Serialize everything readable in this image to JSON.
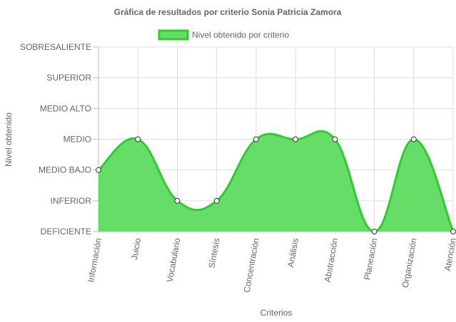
{
  "chart_data": {
    "type": "area",
    "title": "Gráfica de resultados por criterio Sonia Patricia Zamora",
    "xlabel": "Criterios",
    "ylabel": "Nivel obtenido",
    "categories": [
      "Información",
      "Juicio",
      "Vocabulario",
      "Síntesis",
      "Concentración",
      "Análisis",
      "Abstracción",
      "Planeación",
      "Organización",
      "Atención"
    ],
    "y_levels": [
      "DEFICIENTE",
      "INFERIOR",
      "MEDIO BAJO",
      "MEDIO",
      "MEDIO ALTO",
      "SUPERIOR",
      "SOBRESALIENTE"
    ],
    "series": [
      {
        "name": "Nivel obtenido por criterio",
        "values": [
          2,
          3,
          1,
          1,
          3,
          3,
          3,
          0,
          3,
          0
        ]
      }
    ],
    "ylim": [
      0,
      6
    ],
    "grid": true,
    "legend_position": "top",
    "colors": {
      "fill": "#66dd66",
      "line": "#2ecc2e",
      "grid": "#dddddd",
      "axis": "#bbbbbb"
    }
  }
}
